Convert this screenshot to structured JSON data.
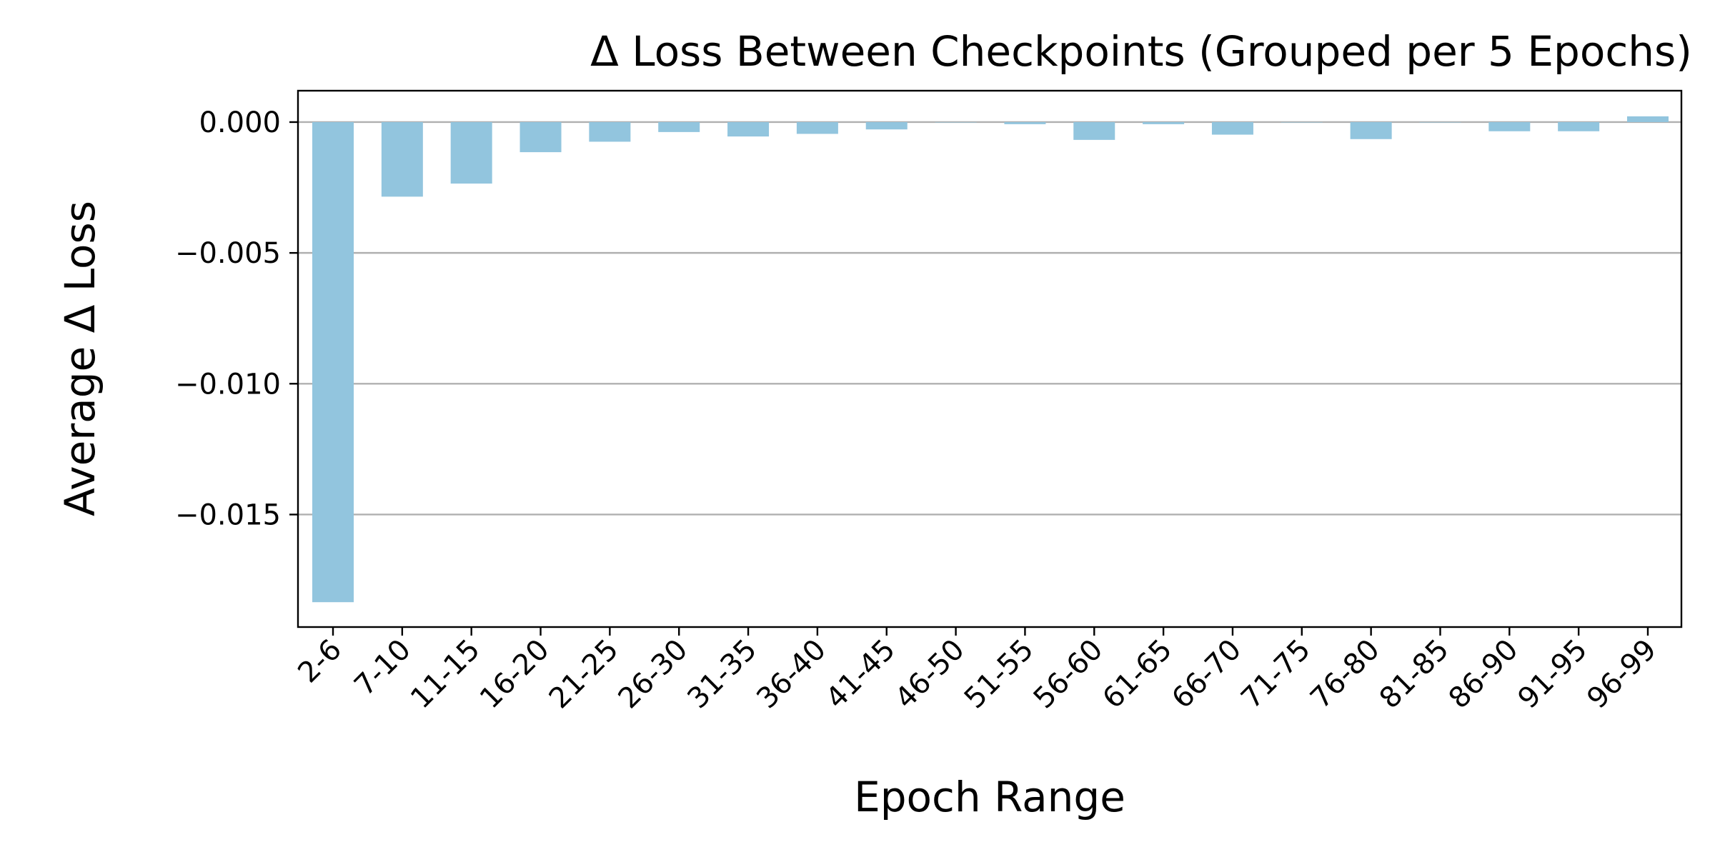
{
  "chart_data": {
    "type": "bar",
    "title": "Δ Loss Between Checkpoints (Grouped per 5 Epochs)",
    "xlabel": "Epoch Range",
    "ylabel": "Average Δ Loss",
    "categories": [
      "2-6",
      "7-10",
      "11-15",
      "16-20",
      "21-25",
      "26-30",
      "31-35",
      "36-40",
      "41-45",
      "46-50",
      "51-55",
      "56-60",
      "61-65",
      "66-70",
      "71-75",
      "76-80",
      "81-85",
      "86-90",
      "91-95",
      "96-99"
    ],
    "values": [
      -0.01835,
      -0.00285,
      -0.00235,
      -0.00115,
      -0.00075,
      -0.00038,
      -0.00055,
      -0.00045,
      -0.00028,
      0.0,
      -8e-05,
      -0.00068,
      -8e-05,
      -0.00048,
      0.0,
      -0.00065,
      0.0,
      -0.00035,
      -0.00035,
      0.00022
    ],
    "ylim": [
      -0.0193,
      0.0012
    ],
    "yticks": [
      0.0,
      -0.005,
      -0.01,
      -0.015
    ],
    "ytick_labels": [
      "0.000",
      "−0.005",
      "−0.010",
      "−0.015"
    ],
    "bar_color": "#92c5de",
    "grid": "y",
    "legend": "none"
  }
}
